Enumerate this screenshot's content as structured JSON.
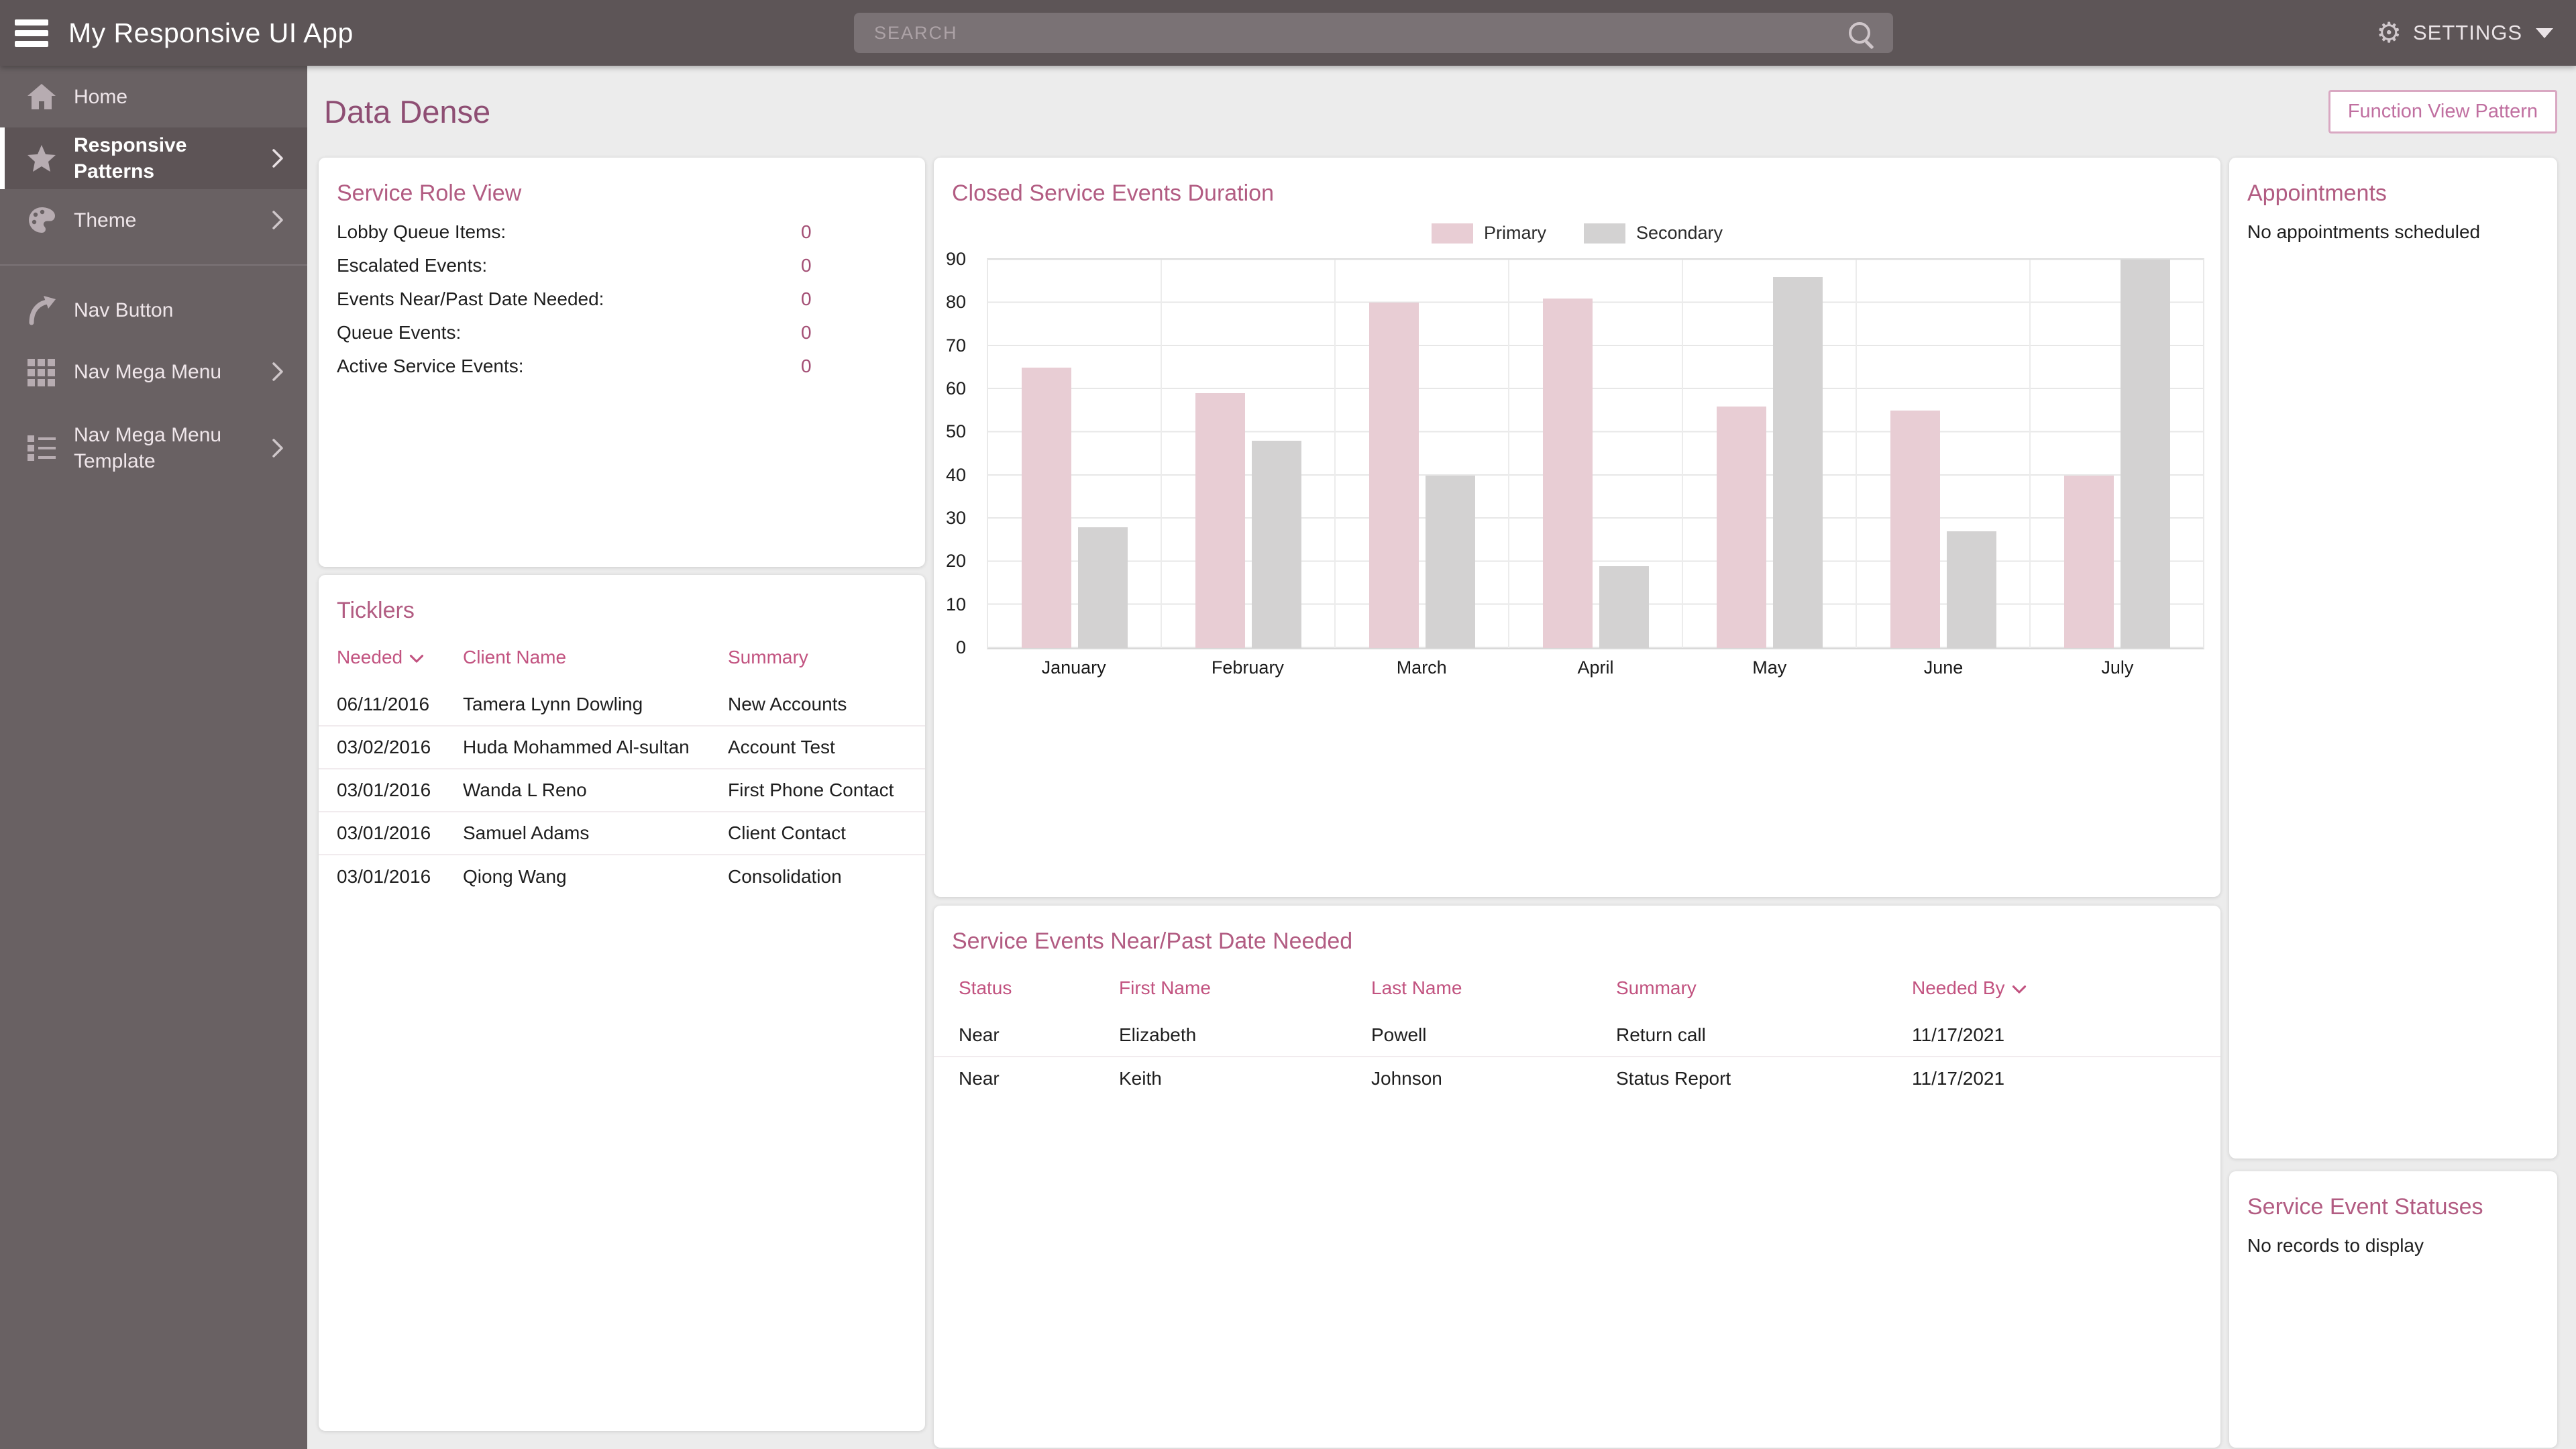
{
  "colors": {
    "header_bg": "#5D5557",
    "sidebar_bg": "#696163",
    "sidebar_active_bg": "#5D5456",
    "page_bg": "#ECECEC",
    "card_bg": "#FFFFFF",
    "page_title": "#8E4E73",
    "card_title": "#B25C82",
    "table_header": "#C25380",
    "metric_value": "#A34E74",
    "button_border": "#D9A8C2",
    "button_text": "#C06FA0",
    "bar_primary": "#E8CDD4",
    "bar_secondary": "#D3D2D2"
  },
  "icons": {
    "gear_glyph": "⚙"
  },
  "header": {
    "app_title": "My Responsive UI App",
    "search_placeholder": "SEARCH",
    "settings_label": "SETTINGS"
  },
  "sidebar": {
    "items": [
      {
        "label": "Home",
        "icon": "home-icon",
        "chevron": false,
        "active": false
      },
      {
        "label": "Responsive Patterns",
        "icon": "star-icon",
        "chevron": true,
        "active": true
      },
      {
        "label": "Theme",
        "icon": "palette-icon",
        "chevron": true,
        "active": false
      },
      {
        "label": "Nav Button",
        "icon": "nav-arrow-icon",
        "chevron": false,
        "active": false
      },
      {
        "label": "Nav Mega Menu",
        "icon": "grid-icon",
        "chevron": true,
        "active": false
      },
      {
        "label": "Nav Mega Menu Template",
        "icon": "list-template-icon",
        "chevron": true,
        "active": false
      }
    ]
  },
  "page": {
    "title": "Data Dense",
    "action_button": "Function View Pattern"
  },
  "service_role_view": {
    "title": "Service Role View",
    "items": [
      {
        "label": "Lobby Queue Items:",
        "value": "0"
      },
      {
        "label": "Escalated Events:",
        "value": "0"
      },
      {
        "label": "Events Near/Past Date Needed:",
        "value": "0"
      },
      {
        "label": "Queue Events:",
        "value": "0"
      },
      {
        "label": "Active Service Events:",
        "value": "0"
      }
    ]
  },
  "ticklers": {
    "title": "Ticklers",
    "columns": [
      "Needed",
      "Client Name",
      "Summary"
    ],
    "sort_column": "Needed",
    "rows": [
      [
        "06/11/2016",
        "Tamera Lynn Dowling",
        "New Accounts"
      ],
      [
        "03/02/2016",
        "Huda Mohammed Al-sultan",
        "Account Test"
      ],
      [
        "03/01/2016",
        "Wanda L Reno",
        "First Phone Contact"
      ],
      [
        "03/01/2016",
        "Samuel Adams",
        "Client Contact"
      ],
      [
        "03/01/2016",
        "Qiong Wang",
        "Consolidation"
      ]
    ]
  },
  "chart_data": {
    "type": "bar",
    "title": "Closed Service Events Duration",
    "categories": [
      "January",
      "February",
      "March",
      "April",
      "May",
      "June",
      "July"
    ],
    "series": [
      {
        "name": "Primary",
        "color": "#E8CDD4",
        "values": [
          65,
          59,
          80,
          81,
          56,
          55,
          40
        ]
      },
      {
        "name": "Secondary",
        "color": "#D3D2D2",
        "values": [
          28,
          48,
          40,
          19,
          86,
          27,
          90
        ]
      }
    ],
    "xlabel": "",
    "ylabel": "",
    "ylim": [
      0,
      90
    ],
    "ytick_step": 10,
    "grid": true,
    "legend_position": "top-center"
  },
  "service_events": {
    "title": "Service Events Near/Past Date Needed",
    "columns": [
      "Status",
      "First Name",
      "Last Name",
      "Summary",
      "Needed By"
    ],
    "sort_column": "Needed By",
    "rows": [
      [
        "Near",
        "Elizabeth",
        "Powell",
        "Return call",
        "11/17/2021"
      ],
      [
        "Near",
        "Keith",
        "Johnson",
        "Status Report",
        "11/17/2021"
      ]
    ]
  },
  "appointments": {
    "title": "Appointments",
    "empty_message": "No appointments scheduled"
  },
  "service_event_statuses": {
    "title": "Service Event Statuses",
    "empty_message": "No records to display"
  }
}
